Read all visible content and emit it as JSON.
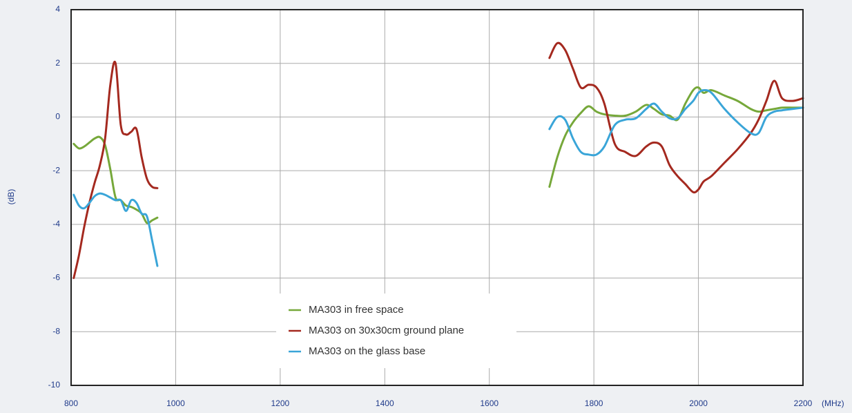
{
  "chart_data": {
    "type": "line",
    "y_label": "(dB)",
    "x_label": "(MHz)",
    "x": [
      805,
      815,
      825,
      835,
      845,
      855,
      865,
      875,
      885,
      895,
      905,
      915,
      925,
      935,
      945,
      955,
      965,
      1300,
      1715,
      1730,
      1745,
      1760,
      1775,
      1790,
      1805,
      1820,
      1840,
      1860,
      1880,
      1900,
      1915,
      1930,
      1945,
      1960,
      1975,
      1990,
      2000,
      2010,
      2025,
      2050,
      2075,
      2100,
      2115,
      2130,
      2145,
      2160,
      2180,
      2200
    ],
    "series": [
      {
        "name": "MA303 in free space",
        "color": "#76a83a",
        "values": [
          -1.0,
          -1.17,
          -1.1,
          -0.95,
          -0.8,
          -0.75,
          -1.05,
          -1.95,
          -3.0,
          -3.1,
          -3.3,
          -3.35,
          -3.45,
          -3.6,
          -3.95,
          -3.85,
          -3.75,
          null,
          -2.6,
          -1.5,
          -0.7,
          -0.2,
          0.15,
          0.4,
          0.2,
          0.1,
          0.05,
          0.05,
          0.2,
          0.45,
          0.3,
          0.1,
          0.05,
          -0.1,
          0.5,
          1.0,
          1.1,
          0.9,
          1.0,
          0.8,
          0.6,
          0.3,
          0.2,
          0.25,
          0.3,
          0.35,
          0.35,
          0.35
        ]
      },
      {
        "name": "MA303 on 30x30cm ground plane",
        "color": "#a4291f",
        "values": [
          -6.0,
          -5.15,
          -4.1,
          -3.2,
          -2.45,
          -1.8,
          -0.8,
          1.2,
          2.0,
          -0.3,
          -0.65,
          -0.55,
          -0.45,
          -1.5,
          -2.3,
          -2.6,
          -2.65,
          null,
          2.2,
          2.75,
          2.5,
          1.8,
          1.1,
          1.2,
          1.1,
          0.5,
          -1.0,
          -1.3,
          -1.45,
          -1.1,
          -0.95,
          -1.1,
          -1.8,
          -2.2,
          -2.5,
          -2.8,
          -2.7,
          -2.4,
          -2.2,
          -1.7,
          -1.2,
          -0.6,
          -0.1,
          0.6,
          1.35,
          0.7,
          0.6,
          0.7
        ]
      },
      {
        "name": "MA303 on the glass base",
        "color": "#3aa5d8",
        "values": [
          -2.9,
          -3.3,
          -3.4,
          -3.2,
          -2.95,
          -2.85,
          -2.9,
          -3.0,
          -3.1,
          -3.1,
          -3.5,
          -3.1,
          -3.2,
          -3.6,
          -3.7,
          -4.6,
          -5.55,
          null,
          -0.45,
          0.0,
          -0.1,
          -0.8,
          -1.3,
          -1.4,
          -1.4,
          -1.1,
          -0.3,
          -0.1,
          -0.05,
          0.3,
          0.5,
          0.2,
          -0.05,
          -0.05,
          0.3,
          0.6,
          0.9,
          1.0,
          0.9,
          0.3,
          -0.2,
          -0.6,
          -0.6,
          0.0,
          0.2,
          0.25,
          0.3,
          0.35
        ]
      }
    ],
    "xlim": [
      800,
      2200
    ],
    "xticks": [
      800,
      1000,
      1200,
      1400,
      1600,
      1800,
      2000,
      2200
    ],
    "ylim": [
      -10,
      4
    ],
    "yticks": [
      -10,
      -8,
      -6,
      -4,
      -2,
      0,
      2,
      4
    ],
    "grid": true
  }
}
